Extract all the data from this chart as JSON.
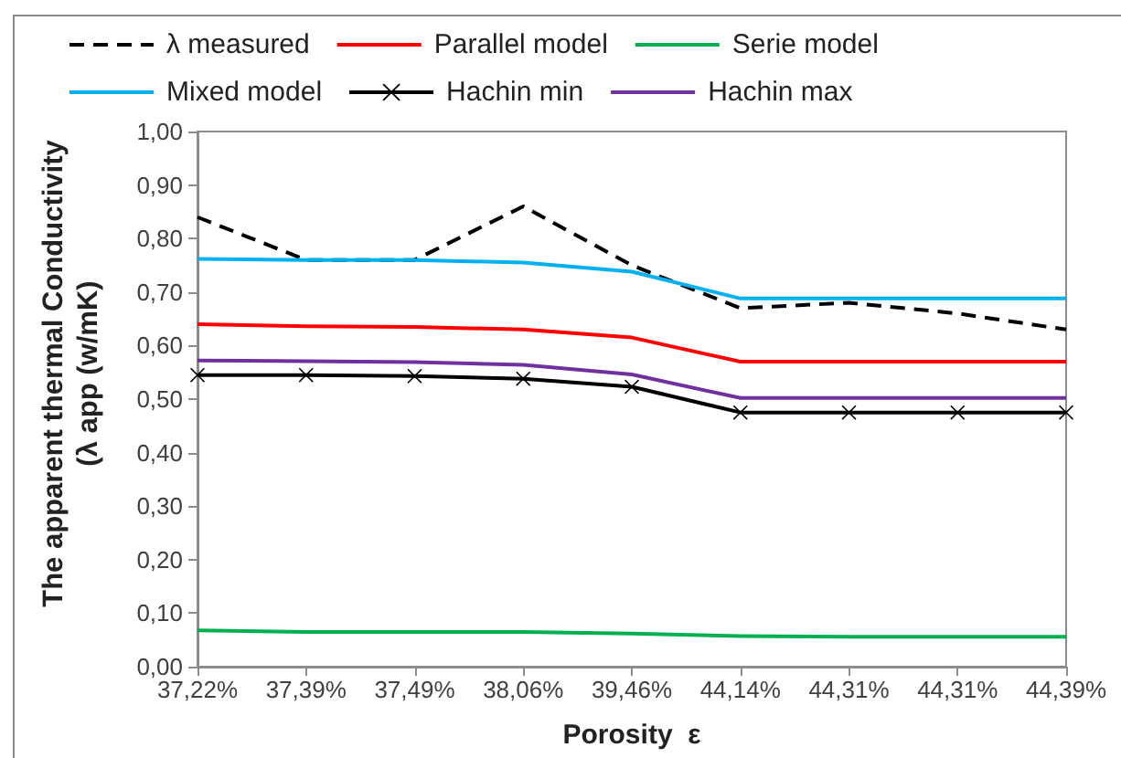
{
  "chart_data": {
    "type": "line",
    "xlabel": "Porosity  ε",
    "ylabel": "The apparent thermal Conductivity\n(λ app (w/mK)",
    "categories": [
      "37,22%",
      "37,39%",
      "37,49%",
      "38,06%",
      "39,46%",
      "44,14%",
      "44,31%",
      "44,31%",
      "44,39%"
    ],
    "series": [
      {
        "name": "λ measured",
        "color": "#000000",
        "line_style": "dashed",
        "values": [
          0.84,
          0.76,
          0.76,
          0.86,
          0.75,
          0.67,
          0.68,
          0.66,
          0.63
        ]
      },
      {
        "name": "Parallel model",
        "color": "#ff0000",
        "values": [
          0.64,
          0.636,
          0.635,
          0.63,
          0.615,
          0.57,
          0.57,
          0.57,
          0.57
        ]
      },
      {
        "name": "Serie model",
        "color": "#00b050",
        "values": [
          0.068,
          0.065,
          0.065,
          0.065,
          0.062,
          0.057,
          0.056,
          0.056,
          0.056
        ]
      },
      {
        "name": "Mixed model",
        "color": "#00b0f0",
        "values": [
          0.762,
          0.76,
          0.76,
          0.755,
          0.738,
          0.688,
          0.688,
          0.688,
          0.688
        ]
      },
      {
        "name": "Hachin min",
        "color": "#000000",
        "marker": "cross",
        "values": [
          0.545,
          0.545,
          0.543,
          0.538,
          0.523,
          0.475,
          0.475,
          0.475,
          0.475
        ]
      },
      {
        "name": "Hachin max",
        "color": "#7030a0",
        "values": [
          0.572,
          0.571,
          0.569,
          0.564,
          0.546,
          0.502,
          0.502,
          0.502,
          0.502
        ]
      }
    ],
    "ylim": [
      0,
      1
    ],
    "yticks": [
      {
        "value": 0,
        "label": "0,00"
      },
      {
        "value": 0.1,
        "label": "0,10"
      },
      {
        "value": 0.2,
        "label": "0,20"
      },
      {
        "value": 0.3,
        "label": "0,30"
      },
      {
        "value": 0.4,
        "label": "0,40"
      },
      {
        "value": 0.5,
        "label": "0,50"
      },
      {
        "value": 0.6,
        "label": "0,60"
      },
      {
        "value": 0.7,
        "label": "0,70"
      },
      {
        "value": 0.8,
        "label": "0,80"
      },
      {
        "value": 0.9,
        "label": "0,90"
      },
      {
        "value": 1,
        "label": "1,00"
      }
    ],
    "grid": false,
    "legend": "top",
    "marker": "none",
    "line_style": "solid"
  }
}
